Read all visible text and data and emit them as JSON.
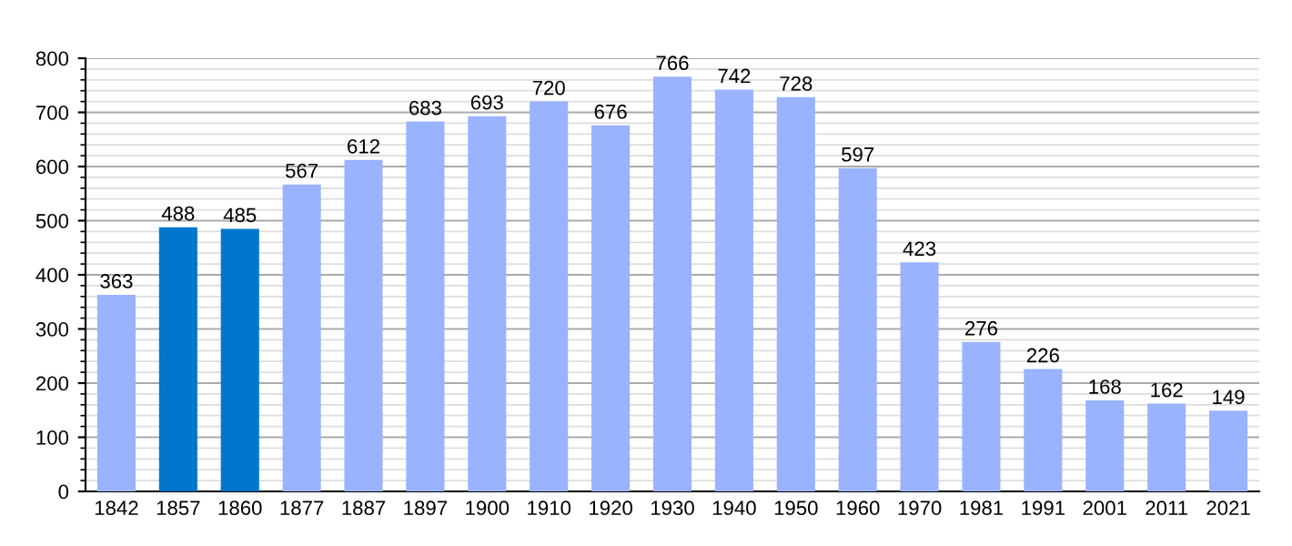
{
  "chart_data": {
    "type": "bar",
    "categories": [
      "1842",
      "1857",
      "1860",
      "1877",
      "1887",
      "1897",
      "1900",
      "1910",
      "1920",
      "1930",
      "1940",
      "1950",
      "1960",
      "1970",
      "1981",
      "1991",
      "2001",
      "2011",
      "2021"
    ],
    "values": [
      363,
      488,
      485,
      567,
      612,
      683,
      693,
      720,
      676,
      766,
      742,
      728,
      597,
      423,
      276,
      226,
      168,
      162,
      149
    ],
    "colors": [
      "#99b3ff",
      "#0077cc",
      "#0077cc",
      "#99b3ff",
      "#99b3ff",
      "#99b3ff",
      "#99b3ff",
      "#99b3ff",
      "#99b3ff",
      "#99b3ff",
      "#99b3ff",
      "#99b3ff",
      "#99b3ff",
      "#99b3ff",
      "#99b3ff",
      "#99b3ff",
      "#99b3ff",
      "#99b3ff",
      "#99b3ff"
    ],
    "ylim": [
      0,
      800
    ],
    "yticks": [
      0,
      100,
      200,
      300,
      400,
      500,
      600,
      700,
      800
    ],
    "grid": "y",
    "data_labels": true
  }
}
